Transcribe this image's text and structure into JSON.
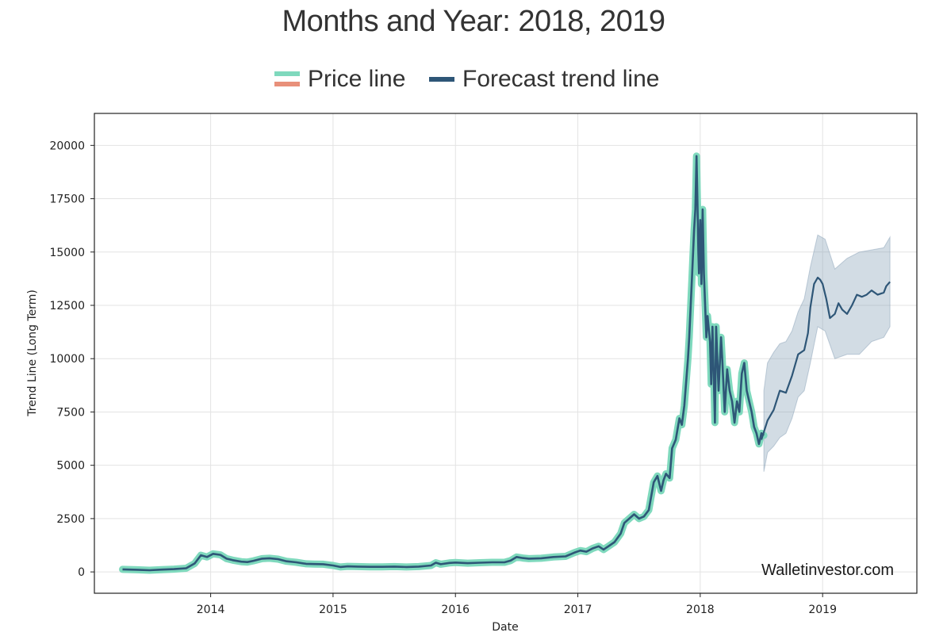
{
  "title": "Months and Year: 2018, 2019",
  "legend": {
    "price_label": "Price line",
    "forecast_label": "Forecast trend line"
  },
  "watermark": "Walletinvestor.com",
  "colors": {
    "price": "#7fd9bd",
    "price_alt": "#e8907a",
    "forecast": "#2e5677",
    "band": "#8aa2b8",
    "grid": "#e3e3e3",
    "axis": "#222222"
  },
  "chart_data": {
    "type": "line",
    "title": "Months and Year: 2018, 2019",
    "xlabel": "Date",
    "ylabel": "Trend Line (Long Term)",
    "xlim": [
      2013.05,
      2019.77
    ],
    "ylim": [
      -1000,
      21500
    ],
    "xticks": [
      {
        "value": 2014,
        "label": "2014"
      },
      {
        "value": 2015,
        "label": "2015"
      },
      {
        "value": 2016,
        "label": "2016"
      },
      {
        "value": 2017,
        "label": "2017"
      },
      {
        "value": 2018,
        "label": "2018"
      },
      {
        "value": 2019,
        "label": "2019"
      }
    ],
    "yticks": [
      {
        "value": 0,
        "label": "0"
      },
      {
        "value": 2500,
        "label": "2500"
      },
      {
        "value": 5000,
        "label": "5000"
      },
      {
        "value": 7500,
        "label": "7500"
      },
      {
        "value": 10000,
        "label": "10000"
      },
      {
        "value": 12500,
        "label": "12500"
      },
      {
        "value": 15000,
        "label": "15000"
      },
      {
        "value": 17500,
        "label": "17500"
      },
      {
        "value": 20000,
        "label": "20000"
      }
    ],
    "grid": true,
    "series": [
      {
        "name": "Price line",
        "x": [
          2013.28,
          2013.4,
          2013.5,
          2013.6,
          2013.7,
          2013.8,
          2013.87,
          2013.92,
          2013.97,
          2014.02,
          2014.08,
          2014.13,
          2014.18,
          2014.25,
          2014.3,
          2014.35,
          2014.42,
          2014.48,
          2014.55,
          2014.62,
          2014.7,
          2014.78,
          2014.85,
          2014.92,
          2015.0,
          2015.06,
          2015.12,
          2015.2,
          2015.3,
          2015.4,
          2015.5,
          2015.6,
          2015.7,
          2015.8,
          2015.84,
          2015.88,
          2015.95,
          2016.0,
          2016.1,
          2016.2,
          2016.3,
          2016.4,
          2016.45,
          2016.5,
          2016.55,
          2016.6,
          2016.7,
          2016.8,
          2016.9,
          2016.97,
          2017.02,
          2017.07,
          2017.12,
          2017.17,
          2017.21,
          2017.25,
          2017.3,
          2017.35,
          2017.38,
          2017.42,
          2017.46,
          2017.5,
          2017.54,
          2017.58,
          2017.62,
          2017.65,
          2017.68,
          2017.7,
          2017.72,
          2017.75,
          2017.77,
          2017.8,
          2017.83,
          2017.85,
          2017.87,
          2017.9,
          2017.91,
          2017.93,
          2017.95,
          2017.96,
          2017.97,
          2017.98,
          2017.985,
          2017.99,
          2018.0,
          2018.01,
          2018.02,
          2018.03,
          2018.05,
          2018.06,
          2018.08,
          2018.09,
          2018.1,
          2018.12,
          2018.13,
          2018.15,
          2018.17,
          2018.18,
          2018.2,
          2018.22,
          2018.24,
          2018.26,
          2018.28,
          2018.3,
          2018.32,
          2018.34,
          2018.36,
          2018.38,
          2018.4,
          2018.42,
          2018.44,
          2018.46,
          2018.48,
          2018.5,
          2018.52
        ],
        "y": [
          120,
          100,
          80,
          110,
          130,
          170,
          400,
          780,
          700,
          850,
          800,
          620,
          550,
          480,
          460,
          520,
          620,
          640,
          600,
          500,
          450,
          380,
          370,
          360,
          300,
          230,
          260,
          250,
          240,
          240,
          250,
          230,
          250,
          300,
          430,
          360,
          420,
          440,
          410,
          430,
          450,
          450,
          530,
          700,
          650,
          620,
          640,
          700,
          730,
          900,
          1000,
          950,
          1100,
          1200,
          1050,
          1200,
          1400,
          1800,
          2300,
          2500,
          2700,
          2500,
          2600,
          2900,
          4200,
          4500,
          3800,
          4300,
          4600,
          4400,
          5800,
          6200,
          7200,
          6900,
          7800,
          10000,
          11000,
          13500,
          16000,
          17000,
          19500,
          16500,
          15000,
          14000,
          16500,
          13500,
          17000,
          14000,
          11000,
          12000,
          10800,
          8800,
          11500,
          7000,
          11500,
          8500,
          11000,
          10000,
          7500,
          9500,
          8500,
          8000,
          7000,
          8000,
          7500,
          9300,
          9800,
          8500,
          8000,
          7500,
          6800,
          6500,
          6000,
          6500,
          6400
        ]
      },
      {
        "name": "Forecast trend line",
        "x": [
          2018.5,
          2018.55,
          2018.6,
          2018.65,
          2018.7,
          2018.75,
          2018.8,
          2018.85,
          2018.88,
          2018.9,
          2018.93,
          2018.96,
          2018.98,
          2019.0,
          2019.03,
          2019.06,
          2019.1,
          2019.13,
          2019.16,
          2019.2,
          2019.24,
          2019.28,
          2019.32,
          2019.36,
          2019.4,
          2019.45,
          2019.5,
          2019.52,
          2019.55
        ],
        "y": [
          6200,
          7100,
          7600,
          8500,
          8400,
          9200,
          10200,
          10400,
          11200,
          12400,
          13500,
          13800,
          13700,
          13500,
          12800,
          11900,
          12100,
          12600,
          12300,
          12100,
          12500,
          13000,
          12900,
          13000,
          13200,
          13000,
          13100,
          13400,
          13600
        ]
      }
    ],
    "confidence_band": {
      "x": [
        2018.52,
        2018.55,
        2018.6,
        2018.65,
        2018.7,
        2018.75,
        2018.8,
        2018.85,
        2018.9,
        2018.96,
        2019.02,
        2019.1,
        2019.2,
        2019.3,
        2019.4,
        2019.5,
        2019.55
      ],
      "upper": [
        8500,
        9800,
        10300,
        10700,
        10800,
        11300,
        12200,
        12800,
        14300,
        15800,
        15600,
        14200,
        14700,
        15000,
        15100,
        15200,
        15700
      ],
      "lower": [
        4700,
        5600,
        5900,
        6300,
        6500,
        7200,
        8200,
        8500,
        9800,
        11500,
        11300,
        10000,
        10200,
        10200,
        10800,
        11000,
        11500
      ]
    }
  }
}
